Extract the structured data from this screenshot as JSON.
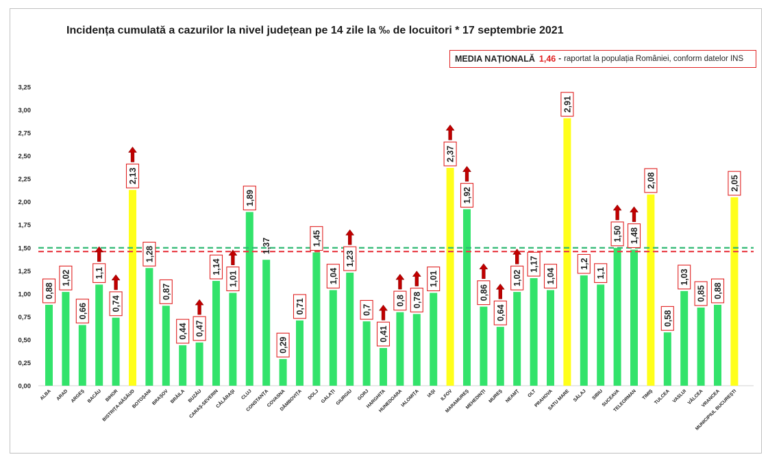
{
  "title": "Incidența cumulată a cazurilor la nivel județean pe 14 zile la ‰ de locuitori * 17 septembrie 2021",
  "media_box": {
    "label": "MEDIA NAȚIONALĂ",
    "value": "1,46",
    "dash": "-",
    "text": "raportat la populația României, conform datelor INS"
  },
  "colors": {
    "bar_green": "#33e36b",
    "bar_yellow": "#ffff1a",
    "label_border": "#e02020",
    "arrow": "#c00000",
    "ref_green": "#2eb872",
    "ref_red": "#e8424a"
  },
  "chart_data": {
    "type": "bar",
    "title": "Incidența cumulată a cazurilor la nivel județean pe 14 zile la ‰ de locuitori * 17 septembrie 2021",
    "xlabel": "",
    "ylabel": "",
    "ylim": [
      0,
      3.25
    ],
    "yticks": [
      "0,00",
      "0,25",
      "0,50",
      "0,75",
      "1,00",
      "1,25",
      "1,50",
      "1,75",
      "2,00",
      "2,25",
      "2,50",
      "2,75",
      "3,00",
      "3,25"
    ],
    "reference_lines": [
      {
        "name": "green threshold",
        "value": 1.5,
        "style": "dashed",
        "color": "green"
      },
      {
        "name": "Media națională",
        "value": 1.46,
        "style": "dashed",
        "color": "red"
      }
    ],
    "categories": [
      "ALBA",
      "ARAD",
      "ARGEȘ",
      "BACĂU",
      "BIHOR",
      "BISTRIȚA-NĂSĂUD",
      "BOTOȘANI",
      "BRAȘOV",
      "BRĂILA",
      "BUZĂU",
      "CARAȘ-SEVERIN",
      "CĂLĂRAȘI",
      "CLUJ",
      "CONSTANȚA",
      "COVASNA",
      "DÂMBOVIȚA",
      "DOLJ",
      "GALAȚI",
      "GIURGIU",
      "GORJ",
      "HARGHITA",
      "HUNEDOARA",
      "IALOMIȚA",
      "IAȘI",
      "ILFOV",
      "MARAMUREȘ",
      "MEHEDINȚI",
      "MUREȘ",
      "NEAMȚ",
      "OLT",
      "PRAHOVA",
      "SATU MARE",
      "SĂLAJ",
      "SIBIU",
      "SUCEAVA",
      "TELEORMAN",
      "TIMIȘ",
      "TULCEA",
      "VASLUI",
      "VÂLCEA",
      "VRANCEA",
      "MUNICIPIUL BUCUREȘTI"
    ],
    "values": [
      0.88,
      1.02,
      0.66,
      1.1,
      0.74,
      2.13,
      1.28,
      0.87,
      0.44,
      0.47,
      1.14,
      1.01,
      1.89,
      1.37,
      0.29,
      0.71,
      1.45,
      1.04,
      1.23,
      0.7,
      0.41,
      0.8,
      0.78,
      1.01,
      2.37,
      1.92,
      0.86,
      0.64,
      1.02,
      1.17,
      1.04,
      2.91,
      1.2,
      1.1,
      1.5,
      1.48,
      2.08,
      0.58,
      1.03,
      0.85,
      0.88,
      2.05
    ],
    "value_labels": [
      "0,88",
      "1,02",
      "0,66",
      "1,1",
      "0,74",
      "2,13",
      "1,28",
      "0,87",
      "0,44",
      "0,47",
      "1,14",
      "1,01",
      "1,89",
      "1,37",
      "0,29",
      "0,71",
      "1,45",
      "1,04",
      "1,23",
      "0,7",
      "0,41",
      "0,8",
      "0,78",
      "1,01",
      "2,37",
      "1,92",
      "0,86",
      "0,64",
      "1,02",
      "1,17",
      "1,04",
      "2,91",
      "1,2",
      "1,1",
      "1,50",
      "1,48",
      "2,08",
      "0,58",
      "1,03",
      "0,85",
      "0,88",
      "2,05"
    ],
    "bar_colors": [
      "green",
      "green",
      "green",
      "green",
      "green",
      "yellow",
      "green",
      "green",
      "green",
      "green",
      "green",
      "green",
      "green",
      "green",
      "green",
      "green",
      "green",
      "green",
      "green",
      "green",
      "green",
      "green",
      "green",
      "green",
      "yellow",
      "green",
      "green",
      "green",
      "green",
      "green",
      "green",
      "yellow",
      "green",
      "green",
      "green",
      "green",
      "yellow",
      "green",
      "green",
      "green",
      "green",
      "yellow"
    ],
    "boxed_label": [
      true,
      true,
      true,
      true,
      true,
      true,
      true,
      true,
      true,
      true,
      true,
      true,
      true,
      false,
      true,
      true,
      true,
      true,
      true,
      true,
      true,
      true,
      true,
      true,
      true,
      true,
      true,
      true,
      true,
      true,
      true,
      true,
      true,
      true,
      true,
      true,
      true,
      true,
      true,
      true,
      true,
      true
    ],
    "up_arrow": [
      false,
      false,
      false,
      true,
      true,
      true,
      false,
      false,
      false,
      true,
      false,
      true,
      false,
      false,
      false,
      false,
      false,
      false,
      true,
      false,
      true,
      true,
      true,
      false,
      true,
      true,
      true,
      true,
      true,
      false,
      false,
      false,
      false,
      false,
      true,
      true,
      false,
      false,
      false,
      false,
      false,
      false
    ]
  }
}
